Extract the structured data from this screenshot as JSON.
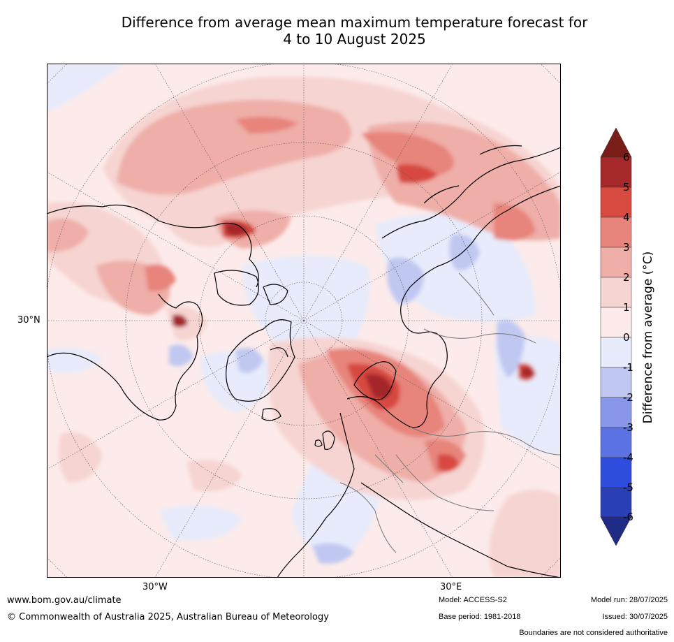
{
  "title_line1": "Difference from average mean maximum temperature forecast for",
  "title_line2": "4 to 10 August 2025",
  "map": {
    "projection": "north-polar-stereographic",
    "lat_label": "30°N",
    "lon_labels": [
      "30°W",
      "30°E"
    ]
  },
  "colorbar": {
    "label": "Difference from average (°C)",
    "ticks": [
      "6",
      "5",
      "4",
      "3",
      "2",
      "1",
      "0",
      "-1",
      "-2",
      "-3",
      "-4",
      "-5",
      "-6"
    ],
    "colors": {
      "above_6": "#7a1d18",
      "5_to_6": "#a5282a",
      "4_to_5": "#d74a40",
      "3_to_4": "#e7847b",
      "2_to_3": "#efaea8",
      "1_to_2": "#f6d4d1",
      "0_to_1": "#fcebea",
      "minus1_to_0": "#e7ebfb",
      "minus2_to_minus1": "#c0c8f2",
      "minus3_to_minus2": "#8897ea",
      "minus4_to_minus3": "#5c72e2",
      "minus5_to_minus4": "#2e4ddd",
      "minus6_to_minus5": "#2a3eb6",
      "below_minus6": "#1f2b84"
    }
  },
  "footer": {
    "url": "www.bom.gov.au/climate",
    "copyright": "© Commonwealth of Australia 2025, Australian Bureau of Meteorology",
    "model": "Model: ACCESS-S2",
    "base_period": "Base period: 1981-2018",
    "model_run": "Model run: 28/07/2025",
    "issued": "Issued: 30/07/2025",
    "boundaries_note": "Boundaries are not considered authoritative"
  }
}
